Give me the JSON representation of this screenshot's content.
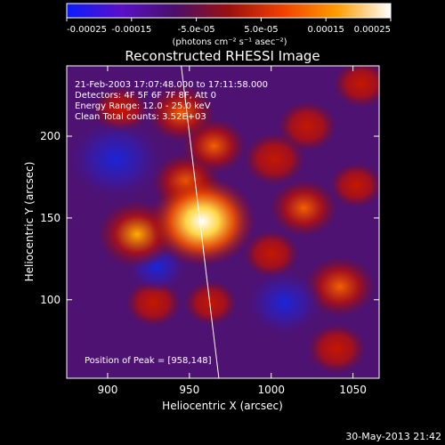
{
  "chart_data": {
    "type": "heatmap",
    "title": "Reconstructed RHESSI Image",
    "xlabel": "Heliocentric X (arcsec)",
    "ylabel": "Heliocentric Y (arcsec)",
    "xlim": [
      875,
      1066
    ],
    "ylim": [
      52,
      243
    ],
    "x_ticks": [
      900,
      950,
      1000,
      1050
    ],
    "y_ticks": [
      100,
      150,
      200
    ],
    "colorbar": {
      "label": "(photons cm⁻² s⁻¹ asec⁻²)",
      "range": [
        -0.00025,
        0.00025
      ],
      "tick_labels": [
        "-0.00025",
        "-0.00015",
        "-5.0e-05",
        "5.0e-05",
        "0.00015",
        "0.00025"
      ],
      "tick_values": [
        -0.00025,
        -0.00015,
        -5e-05,
        5e-05,
        0.00015,
        0.00025
      ],
      "colors": [
        "#0a1cff",
        "#5a10c8",
        "#4a0f6a",
        "#9a1010",
        "#f04000",
        "#ff9c00",
        "#ffffff"
      ]
    },
    "annotations": [
      "21-Feb-2003 17:07:48.000 to 17:11:58.000",
      "Detectors: 4F 5F 6F 7F 8F, Att 0",
      "Energy Range: 12.0 - 25.0 keV",
      "Clean    Total counts: 3.52E+03"
    ],
    "peak_text": "Position of Peak = [958,148]",
    "peak": [
      958,
      148
    ],
    "limb_line": [
      [
        945,
        243
      ],
      [
        968,
        52
      ]
    ],
    "peak_value": 0.00025,
    "sources": [
      {
        "x": 958,
        "y": 148,
        "value": 0.00025
      },
      {
        "x": 948,
        "y": 172,
        "value": 0.00012
      },
      {
        "x": 965,
        "y": 194,
        "value": 0.00011
      },
      {
        "x": 918,
        "y": 140,
        "value": 0.00016
      },
      {
        "x": 908,
        "y": 216,
        "value": 8e-05
      },
      {
        "x": 945,
        "y": 214,
        "value": 0.00012
      },
      {
        "x": 1002,
        "y": 186,
        "value": 0.0001
      },
      {
        "x": 1022,
        "y": 206,
        "value": 9e-05
      },
      {
        "x": 1052,
        "y": 170,
        "value": 7e-05
      },
      {
        "x": 1020,
        "y": 156,
        "value": 0.00012
      },
      {
        "x": 1000,
        "y": 128,
        "value": 8e-05
      },
      {
        "x": 1042,
        "y": 108,
        "value": 0.00013
      },
      {
        "x": 928,
        "y": 98,
        "value": 8e-05
      },
      {
        "x": 963,
        "y": 98,
        "value": 7e-05
      },
      {
        "x": 1040,
        "y": 70,
        "value": 9e-05
      },
      {
        "x": 1055,
        "y": 232,
        "value": 8e-05
      },
      {
        "x": 905,
        "y": 186,
        "value": -0.00023
      },
      {
        "x": 1008,
        "y": 98,
        "value": -0.00016
      },
      {
        "x": 930,
        "y": 120,
        "value": -0.0001
      }
    ]
  },
  "footer": {
    "timestamp": "30-May-2013 21:42"
  }
}
